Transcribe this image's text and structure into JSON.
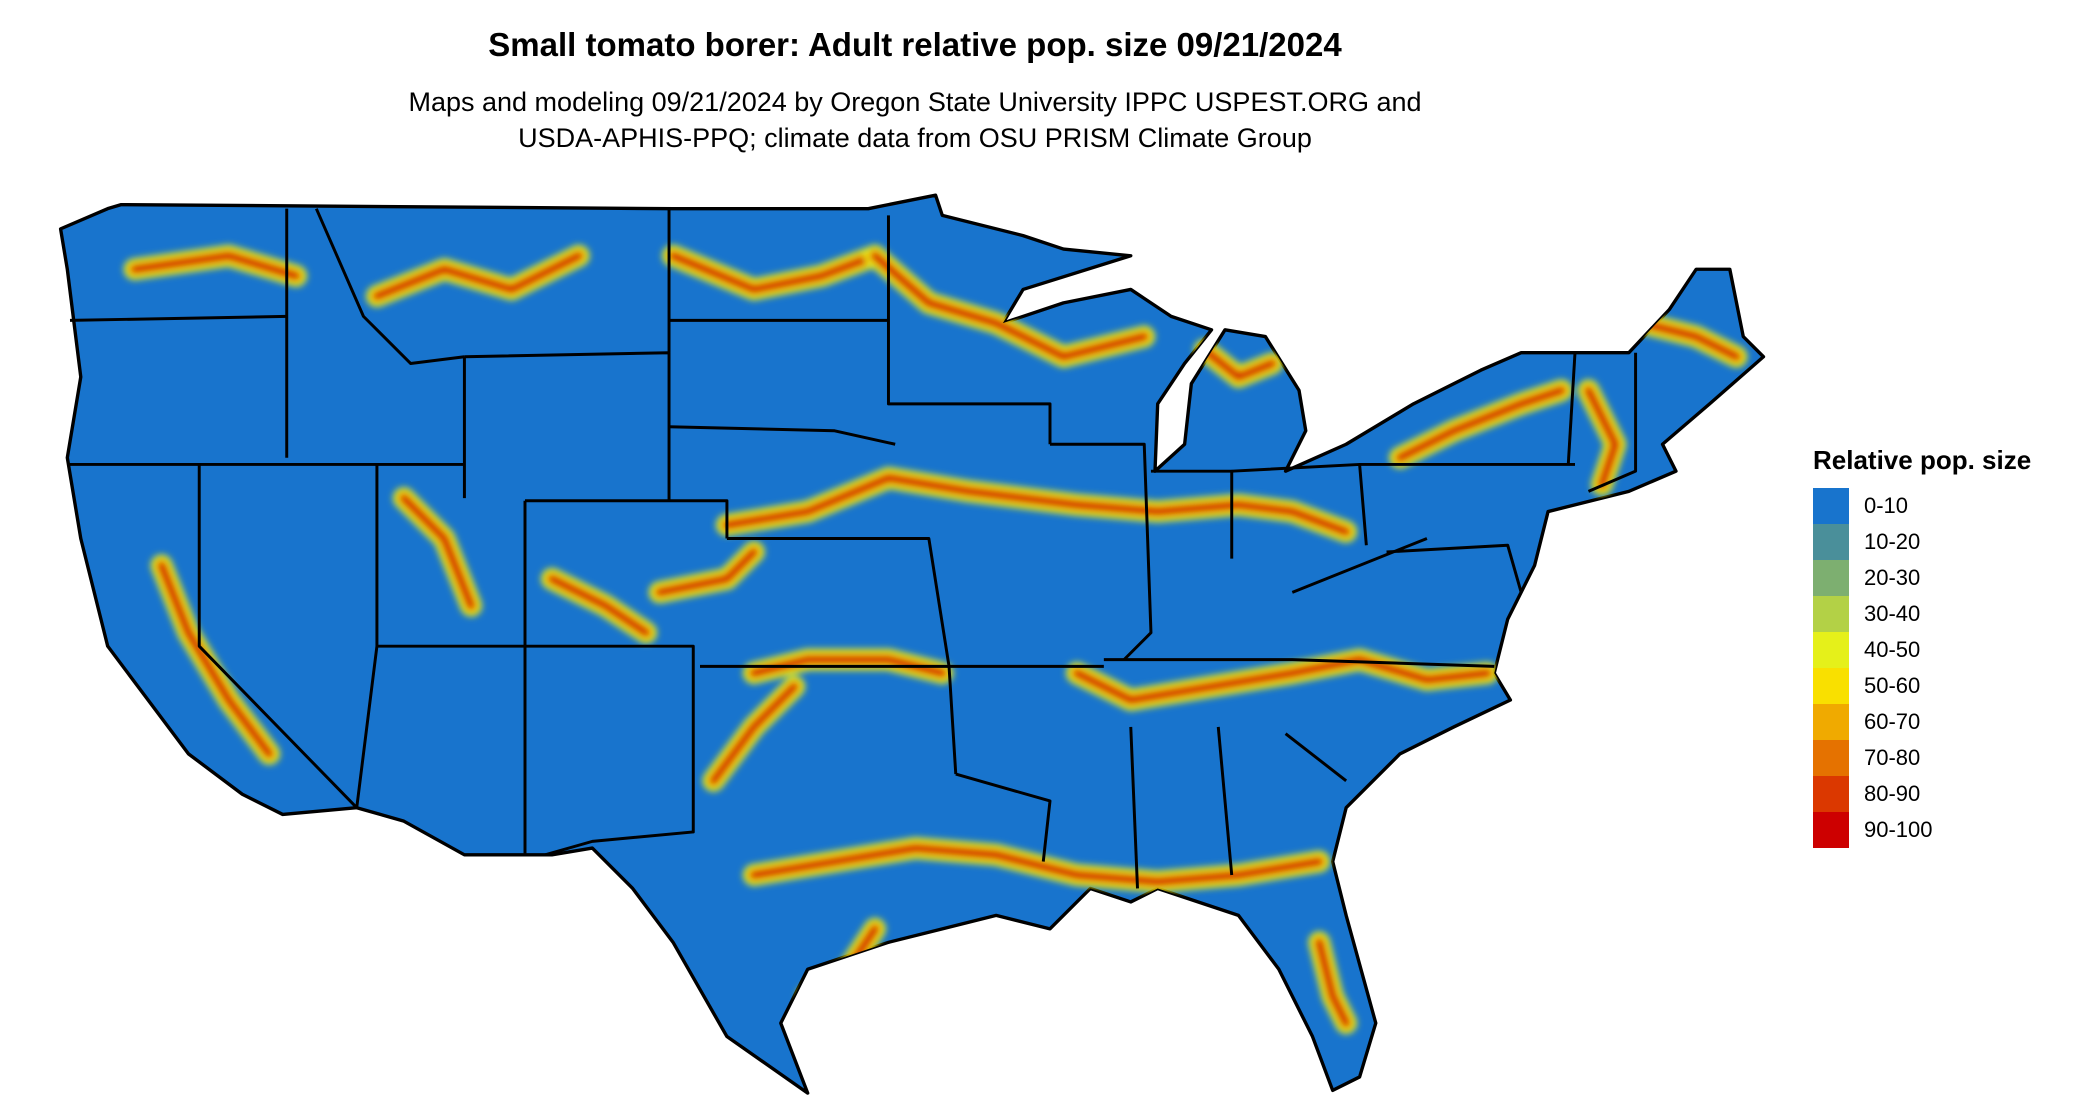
{
  "title": "Small tomato borer: Adult relative pop. size 09/21/2024",
  "subtitle": [
    "Maps and modeling 09/21/2024 by Oregon State University IPPC USPEST.ORG and",
    "USDA-APHIS-PPQ; climate data from OSU PRISM Climate Group"
  ],
  "legend": {
    "title": "Relative pop. size",
    "items": [
      {
        "label": "0-10",
        "color": "#1874CD"
      },
      {
        "label": "10-20",
        "color": "#4A8F9A"
      },
      {
        "label": "20-30",
        "color": "#7DAF70"
      },
      {
        "label": "30-40",
        "color": "#B3D146"
      },
      {
        "label": "40-50",
        "color": "#E5F01A"
      },
      {
        "label": "50-60",
        "color": "#F9E000"
      },
      {
        "label": "60-70",
        "color": "#F0AA00"
      },
      {
        "label": "70-80",
        "color": "#E57200"
      },
      {
        "label": "80-90",
        "color": "#DB3800"
      },
      {
        "label": "90-100",
        "color": "#CD0000"
      }
    ]
  }
}
